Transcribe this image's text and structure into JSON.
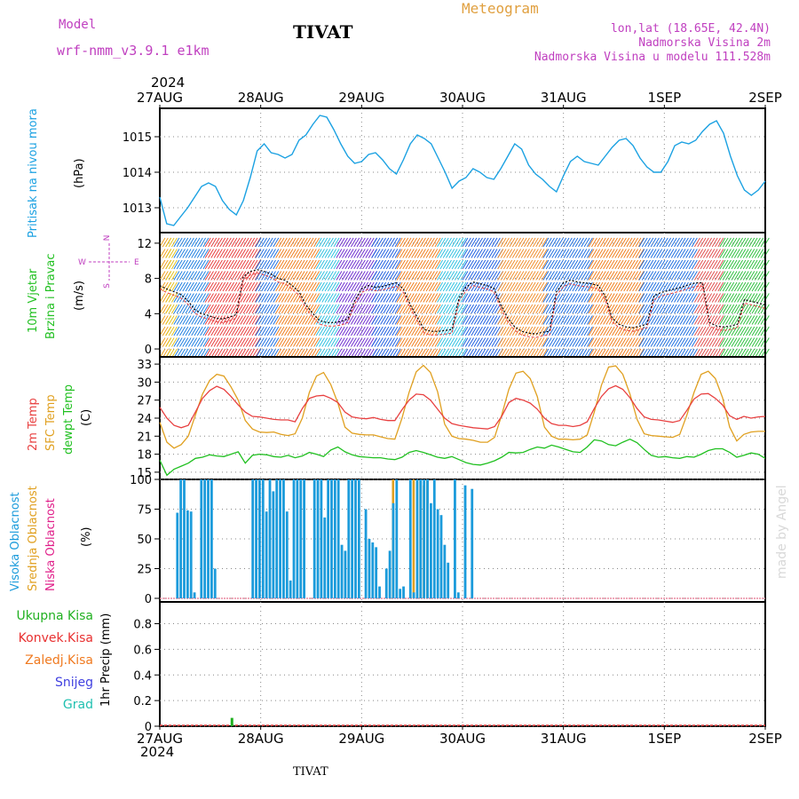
{
  "header": {
    "model_label": "Model",
    "model_name": "wrf-nmm_v3.9.1 e1km",
    "station": "TIVAT",
    "meteogram": "Meteogram",
    "lonlat": "lon,lat (18.65E, 42.4N)",
    "elevation": "Nadmorska Visina 2m",
    "model_elevation": "Nadmorska Visina u modelu 111.528m",
    "year_top": "2024",
    "year_bottom": "2024",
    "footer_station": "TIVAT",
    "credit": "made by Angel"
  },
  "colors": {
    "pressure": "#1ba1e2",
    "wind_label": "#22c022",
    "temp2m": "#e84040",
    "sfc": "#e0a020",
    "dewpt": "#20c020",
    "cloud_high": "#1b9bdb",
    "cloud_mid": "#e0a020",
    "cloud_low": "#e0208a",
    "precip_total": "#20b020",
    "precip_conv": "#e83030",
    "precip_frz": "#f07a20",
    "snow": "#4040e0",
    "hail": "#20c0b0",
    "magenta": "#c040c0",
    "orange_title": "#e0a040"
  },
  "chart_data": [
    {
      "type": "line",
      "panel": "pressure",
      "ylabel": "Pritisak na nivou mora",
      "unit": "(hPa)",
      "x_ticks": [
        "27AUG",
        "28AUG",
        "29AUG",
        "30AUG",
        "31AUG",
        "1SEP",
        "2SEP"
      ],
      "y_ticks": [
        1013,
        1014,
        1015
      ],
      "ylim": [
        1012.3,
        1015.8
      ],
      "series": [
        {
          "values": [
            1013.3,
            1012.55,
            1012.5,
            1012.75,
            1013.0,
            1013.3,
            1013.6,
            1013.7,
            1013.6,
            1013.2,
            1012.95,
            1012.8,
            1013.2,
            1013.85,
            1014.6,
            1014.8,
            1014.55,
            1014.5,
            1014.4,
            1014.5,
            1014.9,
            1015.05,
            1015.35,
            1015.6,
            1015.55,
            1015.2,
            1014.8,
            1014.45,
            1014.25,
            1014.3,
            1014.5,
            1014.55,
            1014.35,
            1014.1,
            1013.95,
            1014.35,
            1014.8,
            1015.05,
            1014.95,
            1014.8,
            1014.4,
            1014.0,
            1013.55,
            1013.75,
            1013.85,
            1014.1,
            1014.0,
            1013.85,
            1013.8,
            1014.1,
            1014.45,
            1014.8,
            1014.65,
            1014.2,
            1013.95,
            1013.8,
            1013.6,
            1013.45,
            1013.9,
            1014.3,
            1014.45,
            1014.3,
            1014.25,
            1014.2,
            1014.45,
            1014.7,
            1014.9,
            1014.95,
            1014.75,
            1014.4,
            1014.15,
            1014.0,
            1014.0,
            1014.3,
            1014.75,
            1014.85,
            1014.8,
            1014.9,
            1015.15,
            1015.35,
            1015.45,
            1015.1,
            1014.45,
            1013.9,
            1013.5,
            1013.35,
            1013.5,
            1013.75
          ]
        }
      ]
    },
    {
      "type": "line",
      "panel": "wind",
      "ylabel": [
        "10m Vjetar",
        "Brzina i Pravac"
      ],
      "unit": "(m/s)",
      "y_ticks": [
        0,
        4,
        8,
        12
      ],
      "ylim": [
        -0.9,
        13.2
      ],
      "compass": [
        "N",
        "S",
        "W",
        "E"
      ],
      "series": [
        {
          "values": [
            7.2,
            6.8,
            6.5,
            6.2,
            5.5,
            4.5,
            4.0,
            3.8,
            3.5,
            3.4,
            3.6,
            3.9,
            8.2,
            8.8,
            9.0,
            8.8,
            8.5,
            8.0,
            7.8,
            7.2,
            6.5,
            5.0,
            4.0,
            3.2,
            3.0,
            3.0,
            3.1,
            3.4,
            5.5,
            6.8,
            7.2,
            7.0,
            7.1,
            7.3,
            7.5,
            6.8,
            5.0,
            3.6,
            2.2,
            2.0,
            2.0,
            2.1,
            2.2,
            5.8,
            7.0,
            7.6,
            7.4,
            7.2,
            6.9,
            5.0,
            3.5,
            2.5,
            2.0,
            1.8,
            1.7,
            1.9,
            2.0,
            6.5,
            7.5,
            7.8,
            7.6,
            7.5,
            7.4,
            7.2,
            6.0,
            3.5,
            2.8,
            2.5,
            2.4,
            2.6,
            2.8,
            6.0,
            6.4,
            6.6,
            6.8,
            7.0,
            7.3,
            7.5,
            7.5,
            3.0,
            2.6,
            2.5,
            2.6,
            2.8,
            5.6,
            5.4,
            5.2,
            5.0
          ]
        }
      ]
    },
    {
      "type": "line",
      "panel": "temperature",
      "ylabel": [
        "2m Temp",
        "SFC Temp",
        "dewpt Temp"
      ],
      "unit": "(C)",
      "y_ticks": [
        15,
        18,
        21,
        24,
        27,
        30,
        33
      ],
      "ylim": [
        13.8,
        34.2
      ],
      "series": [
        {
          "name": "2m Temp",
          "values": [
            25.8,
            24.0,
            22.8,
            22.4,
            22.8,
            25.0,
            27.3,
            28.6,
            29.3,
            28.8,
            27.6,
            26.2,
            25.0,
            24.3,
            24.2,
            24.0,
            23.8,
            23.7,
            23.7,
            23.4,
            25.6,
            27.3,
            27.7,
            27.8,
            27.3,
            26.6,
            25.0,
            24.2,
            24.0,
            23.9,
            24.1,
            23.8,
            23.6,
            23.6,
            25.4,
            27.0,
            28.0,
            27.9,
            27.0,
            25.5,
            24.0,
            23.1,
            22.8,
            22.6,
            22.4,
            22.3,
            22.2,
            22.6,
            24.3,
            26.6,
            27.3,
            27.0,
            26.5,
            25.5,
            24.0,
            23.1,
            22.8,
            22.8,
            22.6,
            22.8,
            23.4,
            25.6,
            27.6,
            28.9,
            29.4,
            28.8,
            27.4,
            25.6,
            24.2,
            23.8,
            23.7,
            23.5,
            23.3,
            23.6,
            25.3,
            27.2,
            28.0,
            28.1,
            27.3,
            26.2,
            24.4,
            23.8,
            24.3,
            24.0,
            24.2,
            24.3
          ]
        },
        {
          "name": "SFC Temp",
          "values": [
            23.3,
            20.0,
            19.0,
            19.6,
            21.0,
            24.5,
            28.0,
            30.3,
            31.3,
            31.0,
            29.2,
            27.0,
            23.6,
            22.2,
            21.7,
            21.6,
            21.7,
            21.3,
            21.1,
            21.4,
            24.0,
            28.3,
            31.0,
            31.6,
            29.6,
            26.5,
            22.5,
            21.5,
            21.3,
            21.2,
            21.2,
            20.9,
            20.6,
            20.5,
            24.0,
            28.3,
            31.7,
            32.8,
            31.6,
            28.4,
            23.0,
            21.0,
            20.6,
            20.5,
            20.3,
            20.0,
            20.0,
            20.8,
            24.5,
            28.8,
            31.5,
            31.8,
            30.6,
            27.6,
            22.5,
            21.0,
            20.5,
            20.5,
            20.4,
            20.5,
            21.2,
            25.0,
            29.5,
            32.5,
            32.7,
            31.3,
            28.0,
            23.8,
            21.4,
            21.1,
            21.0,
            20.9,
            20.8,
            21.3,
            24.5,
            28.3,
            31.3,
            31.8,
            30.6,
            27.4,
            22.5,
            20.2,
            21.3,
            21.7,
            21.8,
            21.8
          ]
        },
        {
          "name": "dewpt Temp",
          "values": [
            17.0,
            14.5,
            15.5,
            16.0,
            16.5,
            17.3,
            17.5,
            17.9,
            17.7,
            17.6,
            18.0,
            18.4,
            16.5,
            17.8,
            18.0,
            17.9,
            17.6,
            17.5,
            17.8,
            17.4,
            17.7,
            18.3,
            18.0,
            17.6,
            18.7,
            19.2,
            18.4,
            17.9,
            17.6,
            17.5,
            17.4,
            17.4,
            17.2,
            17.1,
            17.5,
            18.3,
            18.6,
            18.3,
            17.9,
            17.5,
            17.3,
            17.6,
            17.1,
            16.6,
            16.3,
            16.2,
            16.5,
            16.9,
            17.5,
            18.3,
            18.2,
            18.3,
            18.8,
            19.2,
            19.0,
            19.5,
            19.2,
            18.8,
            18.4,
            18.3,
            19.2,
            20.4,
            20.2,
            19.6,
            19.4,
            20.0,
            20.5,
            19.9,
            18.8,
            17.8,
            17.5,
            17.6,
            17.4,
            17.3,
            17.6,
            17.5,
            18.0,
            18.6,
            18.9,
            18.9,
            18.3,
            17.5,
            17.8,
            18.2,
            18.0,
            17.3
          ]
        }
      ]
    },
    {
      "type": "bar",
      "panel": "cloud",
      "ylabel": [
        "Visoka Oblacnost",
        "Srednja Oblacnost",
        "Niska Oblacnost"
      ],
      "unit": "(%)",
      "y_ticks": [
        0,
        25,
        50,
        75,
        100
      ],
      "ylim": [
        -3,
        100
      ],
      "series": [
        {
          "name": "Visoka Oblacnost",
          "values": [
            0,
            0,
            0,
            72,
            100,
            100,
            74,
            73,
            5,
            0,
            100,
            100,
            100,
            100,
            25,
            0,
            0,
            0,
            0,
            0,
            0,
            0,
            0,
            0,
            0,
            100,
            100,
            100,
            100,
            73,
            100,
            90,
            100,
            100,
            100,
            73,
            15,
            100,
            100,
            100,
            100,
            0,
            0,
            100,
            100,
            100,
            68,
            100,
            100,
            100,
            100,
            45,
            40,
            100,
            100,
            100,
            100,
            0,
            75,
            50,
            47,
            43,
            10,
            0,
            25,
            40,
            80,
            100,
            8,
            10,
            0,
            100,
            5,
            100,
            100,
            100,
            100,
            80,
            100,
            75,
            70,
            45,
            30,
            0,
            100,
            5,
            0,
            95,
            0,
            92
          ]
        },
        {
          "name": "Srednja Oblacnost",
          "values": [
            0,
            0,
            0,
            0,
            0,
            0,
            0,
            0,
            0,
            0,
            0,
            0,
            0,
            0,
            0,
            0,
            0,
            0,
            0,
            0,
            0,
            0,
            0,
            0,
            0,
            0,
            0,
            0,
            0,
            0,
            0,
            0,
            0,
            0,
            0,
            0,
            0,
            0,
            0,
            0,
            0,
            0,
            0,
            0,
            0,
            0,
            0,
            0,
            0,
            0,
            0,
            0,
            0,
            0,
            0,
            0,
            0,
            0,
            0,
            0,
            0,
            0,
            0,
            0,
            0,
            0,
            100,
            0,
            0,
            0,
            0,
            0,
            100,
            0,
            100,
            95,
            100,
            0,
            0,
            0,
            0,
            0,
            0,
            0,
            0,
            0,
            0,
            0,
            0,
            0
          ]
        },
        {
          "name": "Niska Oblacnost",
          "values": [
            0,
            0,
            0,
            0,
            0,
            0,
            0,
            0,
            0,
            0,
            0,
            0,
            0,
            0,
            0,
            0,
            0,
            0,
            0,
            0,
            0,
            0,
            0,
            0,
            0,
            0,
            0,
            0,
            0,
            0,
            0,
            0,
            0,
            0,
            0,
            0,
            0,
            0,
            0,
            0,
            0,
            0,
            0,
            0,
            0,
            0,
            0,
            0,
            0,
            0,
            0,
            0,
            0,
            0,
            0,
            0,
            0,
            0,
            0,
            0,
            0,
            0,
            0,
            0,
            0,
            0,
            0,
            0,
            0,
            0,
            0,
            0,
            0,
            0,
            0,
            0,
            0,
            0,
            0,
            0,
            0,
            0,
            0,
            0,
            0,
            0,
            0,
            0,
            0,
            0
          ]
        }
      ]
    },
    {
      "type": "bar",
      "panel": "precip",
      "ylabel": "1hr Precip",
      "unit": "(mm)",
      "y_ticks": [
        0,
        0.2,
        0.4,
        0.6,
        0.8
      ],
      "ylim": [
        0,
        0.97
      ],
      "legend": [
        "Ukupna Kisa",
        "Konvek.Kisa",
        "Zaledj.Kisa",
        "Snijeg",
        "Grad"
      ],
      "series": [
        {
          "name": "Ukupna Kisa",
          "x": [
            0.715
          ],
          "values": [
            0.065
          ]
        }
      ]
    }
  ]
}
